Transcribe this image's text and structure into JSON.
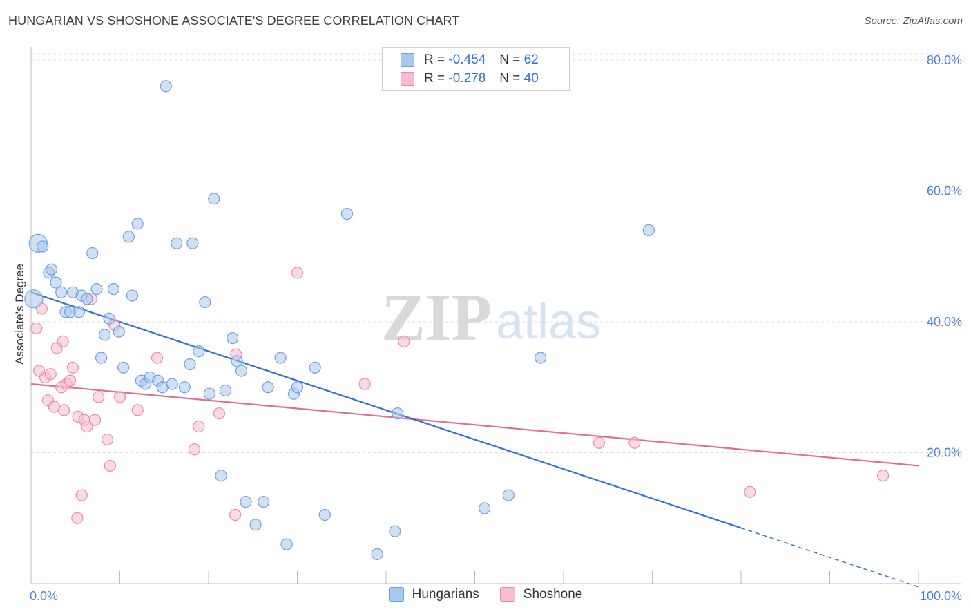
{
  "title": "HUNGARIAN VS SHOSHONE ASSOCIATE'S DEGREE CORRELATION CHART",
  "source": "Source: ZipAtlas.com",
  "watermark": {
    "zip": "ZIP",
    "atlas": "atlas"
  },
  "legend": {
    "rows": [
      {
        "r_label": "R =",
        "r_value": "-0.454",
        "n_label": "N =",
        "n_value": "62",
        "color": "#a9c8ee",
        "border": "#6f9fe0"
      },
      {
        "r_label": "R =",
        "r_value": "-0.278",
        "n_label": "N =",
        "n_value": "40",
        "color": "#f7bcd0",
        "border": "#e88aab"
      }
    ]
  },
  "series_names": {
    "hungarians": "Hungarians",
    "shoshone": "Shoshone"
  },
  "colors": {
    "hungarians_fill": "#a9c8ee",
    "hungarians_stroke": "#6f9fe0",
    "hungarians_line": "#2f6fd6",
    "shoshone_fill": "#f7bcd0",
    "shoshone_stroke": "#e88aab",
    "shoshone_line": "#e36b96",
    "axis_label": "#4a7fd4",
    "grid": "#dcdcdc"
  },
  "chart_data": {
    "type": "scatter",
    "title": "HUNGARIAN VS SHOSHONE ASSOCIATE'S DEGREE CORRELATION CHART",
    "xlabel": "",
    "ylabel": "Associate's Degree",
    "xlim": [
      0,
      100
    ],
    "ylim": [
      0,
      82
    ],
    "x_tick_labels": [
      "0.0%",
      "100.0%"
    ],
    "y_ticks": [
      20,
      40,
      60,
      80
    ],
    "y_tick_labels": [
      "20.0%",
      "40.0%",
      "60.0%",
      "80.0%"
    ],
    "grid": true,
    "legend_position": "top-center",
    "series": [
      {
        "name": "Hungarians",
        "points": [
          [
            0.3,
            43.5
          ],
          [
            0.8,
            52.0
          ],
          [
            1.3,
            51.5
          ],
          [
            2.0,
            47.5
          ],
          [
            2.3,
            48.0
          ],
          [
            2.8,
            46.0
          ],
          [
            3.4,
            44.5
          ],
          [
            3.9,
            41.5
          ],
          [
            4.4,
            41.5
          ],
          [
            4.7,
            44.5
          ],
          [
            5.4,
            41.5
          ],
          [
            5.7,
            44.0
          ],
          [
            6.3,
            43.5
          ],
          [
            6.9,
            50.5
          ],
          [
            7.4,
            45.0
          ],
          [
            7.9,
            34.5
          ],
          [
            8.3,
            38.0
          ],
          [
            8.8,
            40.5
          ],
          [
            9.3,
            45.0
          ],
          [
            9.9,
            38.5
          ],
          [
            10.4,
            33.0
          ],
          [
            11.0,
            53.0
          ],
          [
            11.4,
            44.0
          ],
          [
            12.0,
            55.0
          ],
          [
            12.4,
            31.0
          ],
          [
            12.9,
            30.5
          ],
          [
            13.4,
            31.5
          ],
          [
            14.3,
            31.0
          ],
          [
            14.8,
            30.0
          ],
          [
            15.2,
            76.0
          ],
          [
            15.9,
            30.5
          ],
          [
            16.4,
            52.0
          ],
          [
            17.3,
            30.0
          ],
          [
            17.9,
            33.5
          ],
          [
            18.2,
            52.0
          ],
          [
            18.9,
            35.5
          ],
          [
            19.6,
            43.0
          ],
          [
            20.1,
            29.0
          ],
          [
            20.6,
            58.8
          ],
          [
            21.4,
            16.5
          ],
          [
            21.9,
            29.5
          ],
          [
            22.7,
            37.5
          ],
          [
            23.2,
            34.0
          ],
          [
            23.7,
            32.5
          ],
          [
            24.2,
            12.5
          ],
          [
            25.3,
            9.0
          ],
          [
            26.2,
            12.5
          ],
          [
            26.7,
            30.0
          ],
          [
            28.1,
            34.5
          ],
          [
            28.8,
            6.0
          ],
          [
            29.6,
            29.0
          ],
          [
            30.0,
            30.0
          ],
          [
            32.0,
            33.0
          ],
          [
            33.1,
            10.5
          ],
          [
            35.6,
            56.5
          ],
          [
            39.0,
            4.5
          ],
          [
            41.0,
            8.0
          ],
          [
            41.3,
            26.0
          ],
          [
            51.1,
            11.5
          ],
          [
            53.8,
            13.5
          ],
          [
            57.4,
            34.5
          ],
          [
            69.6,
            54.0
          ]
        ]
      },
      {
        "name": "Shoshone",
        "points": [
          [
            0.6,
            39.0
          ],
          [
            0.9,
            32.5
          ],
          [
            1.2,
            42.0
          ],
          [
            1.6,
            31.5
          ],
          [
            1.9,
            28.0
          ],
          [
            2.2,
            32.0
          ],
          [
            2.6,
            27.0
          ],
          [
            2.9,
            36.0
          ],
          [
            3.4,
            30.0
          ],
          [
            3.6,
            37.0
          ],
          [
            3.7,
            26.5
          ],
          [
            4.0,
            30.5
          ],
          [
            4.4,
            31.0
          ],
          [
            4.7,
            33.0
          ],
          [
            5.3,
            25.5
          ],
          [
            5.2,
            10.0
          ],
          [
            5.7,
            13.5
          ],
          [
            6.0,
            25.0
          ],
          [
            6.3,
            24.0
          ],
          [
            6.8,
            43.5
          ],
          [
            7.2,
            25.0
          ],
          [
            7.6,
            28.5
          ],
          [
            8.6,
            22.0
          ],
          [
            8.9,
            18.0
          ],
          [
            9.4,
            39.5
          ],
          [
            10.0,
            28.5
          ],
          [
            12.0,
            26.5
          ],
          [
            14.2,
            34.5
          ],
          [
            18.4,
            20.5
          ],
          [
            18.9,
            24.0
          ],
          [
            21.2,
            26.0
          ],
          [
            23.0,
            10.5
          ],
          [
            23.1,
            35.0
          ],
          [
            30.0,
            47.5
          ],
          [
            37.6,
            30.5
          ],
          [
            42.0,
            37.0
          ],
          [
            64.0,
            21.5
          ],
          [
            68.0,
            21.5
          ],
          [
            81.0,
            14.0
          ],
          [
            96.0,
            16.5
          ]
        ]
      }
    ],
    "trend_lines": [
      {
        "name": "Hungarians",
        "x": [
          0,
          80
        ],
        "y": [
          44.5,
          8.5
        ],
        "dashed_extension_x": [
          80,
          100
        ],
        "dashed_extension_y": [
          8.5,
          -0.5
        ]
      },
      {
        "name": "Shoshone",
        "x": [
          0,
          100
        ],
        "y": [
          30.5,
          18.0
        ]
      }
    ]
  }
}
